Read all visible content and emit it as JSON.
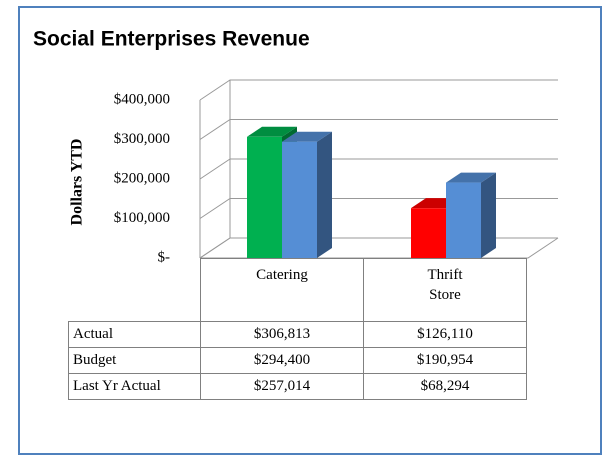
{
  "chart_data": {
    "type": "bar3d",
    "title": "Social Enterprises Revenue",
    "y_axis_label": "Dollars YTD",
    "categories": [
      "Catering",
      "Thrift Store"
    ],
    "series": [
      {
        "name": "Actual",
        "colors": [
          "#00b050",
          "#ff0000"
        ],
        "values": [
          306813,
          126110
        ],
        "value_labels": [
          "$306,813",
          "$126,110"
        ]
      },
      {
        "name": "Budget",
        "color": "#558ed5",
        "values": [
          294400,
          190954
        ],
        "value_labels": [
          "$294,400",
          "$190,954"
        ]
      },
      {
        "name": "Last Yr Actual",
        "values": [
          257014,
          68294
        ],
        "value_labels": [
          "$257,014",
          "$68,294"
        ]
      }
    ],
    "ylim": [
      0,
      400000
    ],
    "yticks": [
      {
        "value": 0,
        "label": "$-"
      },
      {
        "value": 100000,
        "label": "$100,000"
      },
      {
        "value": 200000,
        "label": "$200,000"
      },
      {
        "value": 300000,
        "label": "$300,000"
      },
      {
        "value": 400000,
        "label": "$400,000"
      }
    ],
    "grid": true
  }
}
